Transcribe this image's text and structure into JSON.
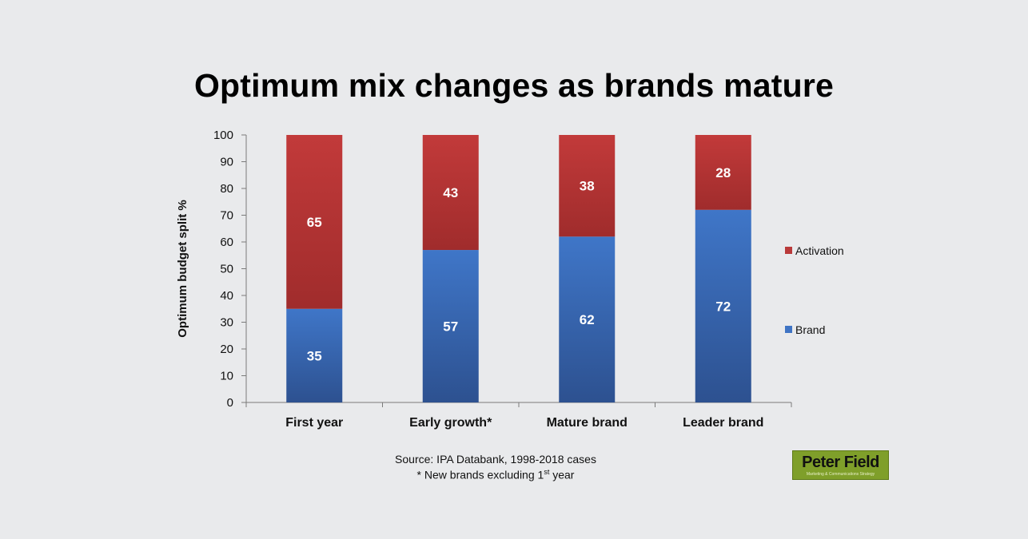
{
  "title": "Optimum mix changes as brands mature",
  "footnote": {
    "source": "Source: IPA Databank, 1998-2018 cases",
    "note_prefix": "* New brands excluding 1",
    "note_sup": "st",
    "note_suffix": " year"
  },
  "logo": {
    "name": "Peter Field",
    "tagline": "Marketing & Communications Strategy"
  },
  "chart_data": {
    "type": "bar",
    "stacked": true,
    "title": "Optimum mix changes as brands mature",
    "xlabel": "",
    "ylabel": "Optimum budget split %",
    "ylim": [
      0,
      100
    ],
    "yticks": [
      0,
      10,
      20,
      30,
      40,
      50,
      60,
      70,
      80,
      90,
      100
    ],
    "grid": false,
    "legend_position": "right",
    "categories": [
      "First year",
      "Early growth*",
      "Mature brand",
      "Leader brand"
    ],
    "series": [
      {
        "name": "Brand",
        "values": [
          35,
          57,
          62,
          72
        ],
        "color": "#3f74c4"
      },
      {
        "name": "Activation",
        "values": [
          65,
          43,
          38,
          28
        ],
        "color": "#b93a3a"
      }
    ],
    "legend_order": [
      "Activation",
      "Brand"
    ]
  }
}
